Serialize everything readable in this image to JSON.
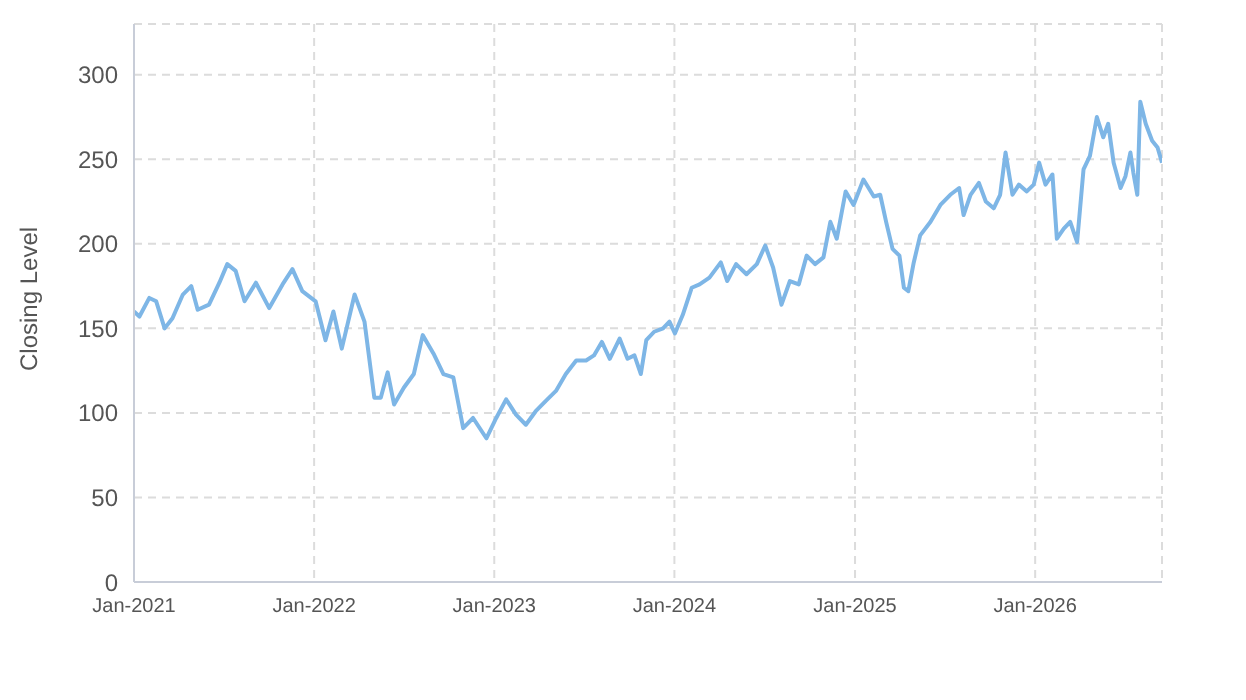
{
  "chart_data": {
    "type": "line",
    "ylabel": "Closing Level",
    "grid": true,
    "legend": false,
    "marker": "none",
    "line_style": "solid",
    "xlim": [
      "2021-01-01",
      "2026-09-15"
    ],
    "xticks": [
      {
        "value": "2021-01-01",
        "label": "Jan-2021"
      },
      {
        "value": "2022-01-01",
        "label": "Jan-2022"
      },
      {
        "value": "2023-01-01",
        "label": "Jan-2023"
      },
      {
        "value": "2024-01-01",
        "label": "Jan-2024"
      },
      {
        "value": "2025-01-01",
        "label": "Jan-2025"
      },
      {
        "value": "2026-01-01",
        "label": "Jan-2026"
      }
    ],
    "ylim": [
      0,
      330
    ],
    "yticks": [
      0,
      50,
      100,
      150,
      200,
      250,
      300
    ],
    "x": [
      "2021-01-01",
      "2021-01-12",
      "2021-02-01",
      "2021-02-15",
      "2021-03-04",
      "2021-03-20",
      "2021-04-10",
      "2021-04-27",
      "2021-05-10",
      "2021-06-02",
      "2021-06-23",
      "2021-07-09",
      "2021-07-26",
      "2021-08-13",
      "2021-09-05",
      "2021-10-02",
      "2021-10-29",
      "2021-11-18",
      "2021-12-08",
      "2022-01-04",
      "2022-01-24",
      "2022-02-09",
      "2022-02-26",
      "2022-03-24",
      "2022-04-13",
      "2022-05-03",
      "2022-05-16",
      "2022-05-30",
      "2022-06-12",
      "2022-07-02",
      "2022-07-22",
      "2022-08-09",
      "2022-08-31",
      "2022-09-20",
      "2022-10-10",
      "2022-10-30",
      "2022-11-19",
      "2022-12-16",
      "2023-01-05",
      "2023-01-25",
      "2023-02-14",
      "2023-03-06",
      "2023-03-26",
      "2023-04-15",
      "2023-05-06",
      "2023-05-26",
      "2023-06-16",
      "2023-07-06",
      "2023-07-22",
      "2023-08-07",
      "2023-08-23",
      "2023-09-12",
      "2023-09-28",
      "2023-10-12",
      "2023-10-25",
      "2023-11-05",
      "2023-11-21",
      "2023-12-09",
      "2023-12-22",
      "2024-01-02",
      "2024-01-18",
      "2024-02-05",
      "2024-02-21",
      "2024-03-12",
      "2024-04-04",
      "2024-04-17",
      "2024-05-05",
      "2024-05-26",
      "2024-06-16",
      "2024-07-03",
      "2024-07-19",
      "2024-08-05",
      "2024-08-22",
      "2024-09-09",
      "2024-09-25",
      "2024-10-12",
      "2024-10-29",
      "2024-11-12",
      "2024-11-25",
      "2024-12-13",
      "2024-12-29",
      "2025-01-18",
      "2025-02-08",
      "2025-02-21",
      "2025-03-05",
      "2025-03-18",
      "2025-04-01",
      "2025-04-10",
      "2025-04-19",
      "2025-04-30",
      "2025-05-13",
      "2025-06-03",
      "2025-06-23",
      "2025-07-13",
      "2025-07-31",
      "2025-08-09",
      "2025-08-23",
      "2025-09-09",
      "2025-09-23",
      "2025-10-09",
      "2025-10-22",
      "2025-11-02",
      "2025-11-16",
      "2025-11-29",
      "2025-12-15",
      "2025-12-29",
      "2026-01-09",
      "2026-01-22",
      "2026-02-05",
      "2026-02-14",
      "2026-02-28",
      "2026-03-13",
      "2026-03-27",
      "2026-04-09",
      "2026-04-22",
      "2026-05-06",
      "2026-05-19",
      "2026-05-29",
      "2026-06-09",
      "2026-06-23",
      "2026-07-03",
      "2026-07-13",
      "2026-07-19",
      "2026-07-27",
      "2026-08-02",
      "2026-08-13",
      "2026-08-26",
      "2026-09-06",
      "2026-09-15"
    ],
    "series": [
      {
        "color": "#7eb6e6",
        "values": [
          160,
          157,
          168,
          166,
          150,
          156,
          170,
          175,
          161,
          164,
          177,
          188,
          184,
          166,
          177,
          162,
          176,
          185,
          172,
          166,
          143,
          160,
          138,
          170,
          154,
          109,
          109,
          124,
          105,
          115,
          123,
          146,
          135,
          123,
          121,
          91,
          97,
          85,
          97,
          108,
          99,
          93,
          101,
          107,
          113,
          123,
          131,
          131,
          134,
          142,
          132,
          144,
          132,
          134,
          123,
          143,
          148,
          150,
          154,
          147,
          158,
          174,
          176,
          180,
          189,
          178,
          188,
          182,
          188,
          199,
          186,
          164,
          178,
          176,
          193,
          188,
          192,
          213,
          203,
          231,
          223,
          238,
          228,
          229,
          213,
          197,
          193,
          174,
          172,
          189,
          205,
          213,
          223,
          229,
          233,
          217,
          229,
          236,
          225,
          221,
          229,
          254,
          229,
          235,
          231,
          235,
          248,
          235,
          241,
          203,
          209,
          213,
          201,
          244,
          252,
          275,
          263,
          271,
          248,
          233,
          240,
          254,
          242,
          229,
          284,
          271,
          261,
          257,
          248
        ]
      }
    ]
  }
}
